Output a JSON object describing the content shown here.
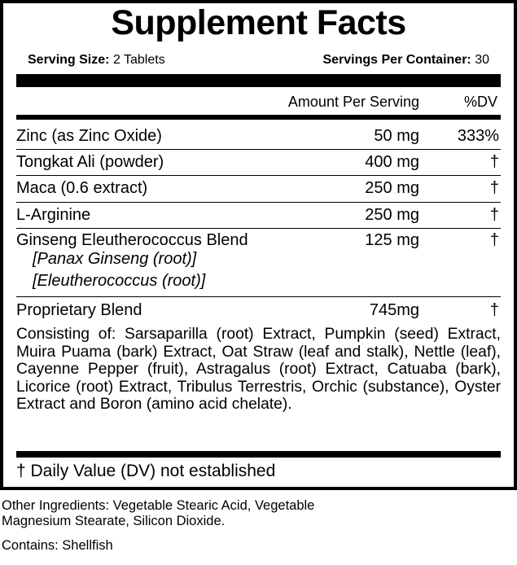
{
  "title": "Supplement Facts",
  "serving": {
    "size_label": "Serving Size:",
    "size_value": "2 Tablets",
    "per_container_label": "Servings Per Container:",
    "per_container_value": "30"
  },
  "header": {
    "amount": "Amount Per Serving",
    "dv": "%DV"
  },
  "rows": [
    {
      "name": "Zinc (as Zinc Oxide)",
      "amount": "50 mg",
      "dv": "333%"
    },
    {
      "name": "Tongkat Ali (powder)",
      "amount": "400 mg",
      "dv": "†"
    },
    {
      "name": "Maca (0.6 extract)",
      "amount": "250 mg",
      "dv": "†"
    },
    {
      "name": "L-Arginine",
      "amount": "250 mg",
      "dv": "†"
    },
    {
      "name": "Ginseng Eleutherococcus Blend",
      "amount": "125 mg",
      "dv": "†",
      "sub": [
        "[Panax Ginseng (root)]",
        "[Eleutherococcus (root)]"
      ]
    },
    {
      "name": "Proprietary Blend",
      "amount": "745mg",
      "dv": "†"
    }
  ],
  "consisting": "Consisting of: Sarsaparilla (root) Extract, Pumpkin (seed) Extract, Muira Puama (bark) Extract, Oat Straw (leaf and stalk), Nettle (leaf), Cayenne Pepper (fruit), Astragalus (root) Extract, Catuaba (bark), Licorice (root) Extract, Tribulus Terrestris, Orchic (substance), Oyster Extract and Boron (amino acid chelate).",
  "dv_note": "† Daily Value (DV) not established",
  "other_ingredients": [
    "Other Ingredients: Vegetable Stearic Acid, Vegetable",
    "Magnesium Stearate, Silicon Dioxide."
  ],
  "contains": "Contains: Shellfish"
}
